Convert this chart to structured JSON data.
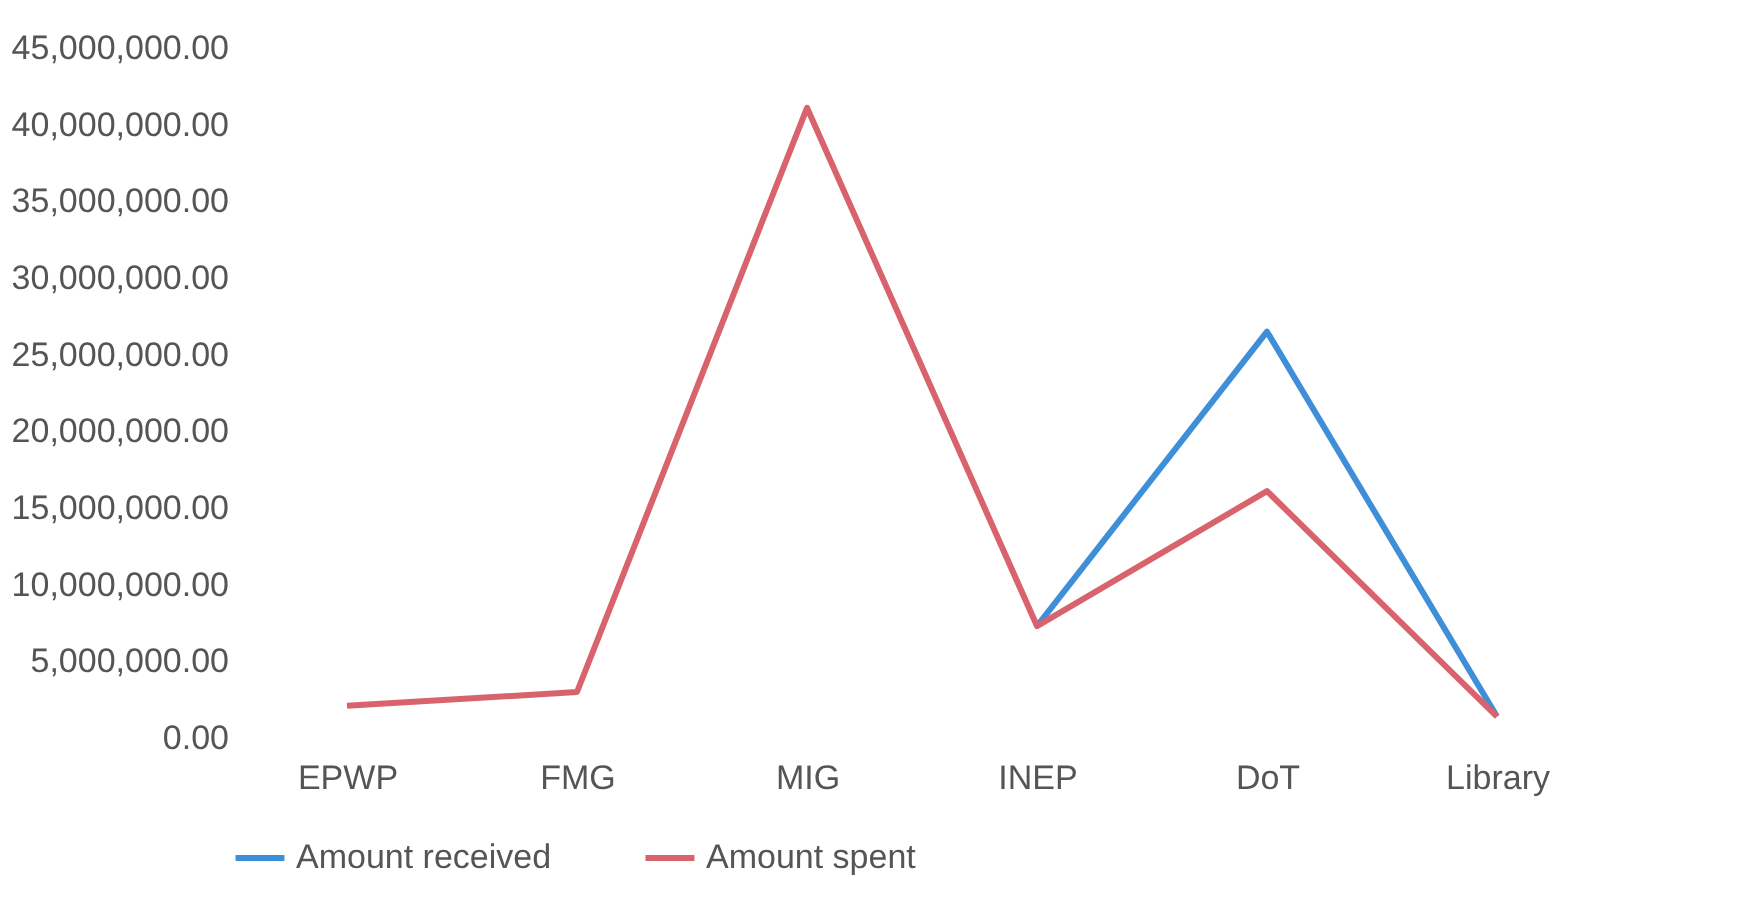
{
  "chart_data": {
    "type": "line",
    "categories": [
      "EPWP",
      "FMG",
      "MIG",
      "INEP",
      "DoT",
      "Library"
    ],
    "series": [
      {
        "name": "Amount received",
        "color": "#3f8fd8",
        "values": [
          null,
          null,
          null,
          7300000,
          26500000,
          1400000
        ]
      },
      {
        "name": "Amount spent",
        "color": "#d9636c",
        "values": [
          2100000,
          3000000,
          41100000,
          7300000,
          16100000,
          1400000
        ]
      }
    ],
    "ylim": [
      0,
      45000000
    ],
    "yticks": [
      {
        "value": 0,
        "label": "0.00"
      },
      {
        "value": 5000000,
        "label": "5,000,000.00"
      },
      {
        "value": 10000000,
        "label": "10,000,000.00"
      },
      {
        "value": 15000000,
        "label": "15,000,000.00"
      },
      {
        "value": 20000000,
        "label": "20,000,000.00"
      },
      {
        "value": 25000000,
        "label": "25,000,000.00"
      },
      {
        "value": 30000000,
        "label": "30,000,000.00"
      },
      {
        "value": 35000000,
        "label": "35,000,000.00"
      },
      {
        "value": 40000000,
        "label": "40,000,000.00"
      },
      {
        "value": 45000000,
        "label": "45,000,000.00"
      }
    ],
    "grid": false,
    "legend": "bottom",
    "marker": "none",
    "line_style": "solid"
  }
}
